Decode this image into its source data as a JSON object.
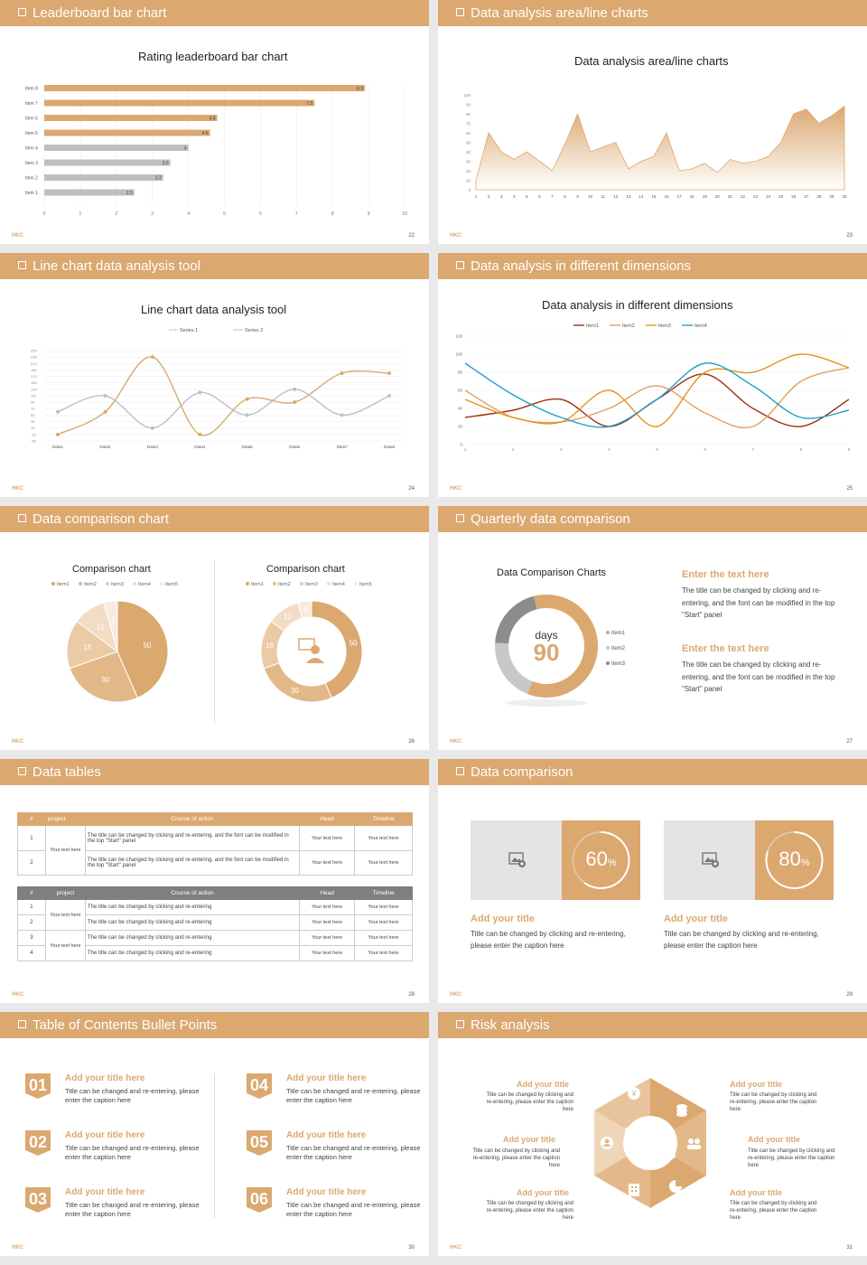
{
  "colors": {
    "accent": "#dba870",
    "gray": "#bfbfbf",
    "dark_gray": "#7f7f7f",
    "light": "#f2dcc4"
  },
  "logo": "HKC",
  "slides": [
    {
      "header": "Leaderboard bar chart",
      "page": "22",
      "title": "Rating leaderboard bar chart"
    },
    {
      "header": "Data analysis area/line charts",
      "page": "23",
      "title": "Data analysis area/line charts"
    },
    {
      "header": "Line chart data analysis tool",
      "page": "24",
      "title": "Line chart data analysis tool"
    },
    {
      "header": "Data analysis in different dimensions",
      "page": "25",
      "title": "Data analysis in different dimensions"
    },
    {
      "header": "Data comparison chart",
      "page": "26",
      "title": "Comparison chart",
      "title2": "Comparison chart"
    },
    {
      "header": "Quarterly data comparison",
      "page": "27",
      "title": "Data Comparison Charts"
    },
    {
      "header": "Data tables",
      "page": "28"
    },
    {
      "header": "Data comparison",
      "page": "29"
    },
    {
      "header": "Table of Contents Bullet Points",
      "page": "30"
    },
    {
      "header": "Risk analysis",
      "page": "31"
    }
  ],
  "chart_data": [
    {
      "type": "bar",
      "title": "Rating leaderboard bar chart",
      "categories": [
        "Item 8",
        "Item 7",
        "Item 6",
        "Item 5",
        "Item 4",
        "Item 3",
        "Item 2",
        "Item 1"
      ],
      "values": [
        8.9,
        7.5,
        4.8,
        4.6,
        4,
        3.5,
        3.3,
        2.5
      ],
      "xlim": [
        0,
        10
      ],
      "xticks": [
        "0",
        "1",
        "2",
        "3",
        "4",
        "5",
        "6",
        "7",
        "8",
        "9",
        "10"
      ]
    },
    {
      "type": "area",
      "title": "Data analysis area/line charts",
      "x": [
        1,
        2,
        3,
        4,
        5,
        6,
        7,
        8,
        9,
        10,
        11,
        12,
        13,
        14,
        15,
        16,
        17,
        18,
        19,
        20,
        21,
        22,
        23,
        24,
        25,
        26,
        27,
        28,
        29,
        30
      ],
      "values": [
        10,
        60,
        40,
        32,
        40,
        30,
        20,
        48,
        80,
        40,
        45,
        50,
        22,
        30,
        35,
        60,
        20,
        22,
        28,
        18,
        32,
        28,
        30,
        35,
        50,
        80,
        85,
        70,
        78,
        88
      ],
      "ylim": [
        0,
        100
      ],
      "yticks": [
        "0",
        "10",
        "20",
        "30",
        "40",
        "50",
        "60",
        "70",
        "80",
        "90",
        "100"
      ]
    },
    {
      "type": "line",
      "title": "Line chart data analysis tool",
      "categories": [
        "Data1",
        "Data2",
        "Data3",
        "Data4",
        "Data5",
        "Data6",
        "Data7",
        "Data8"
      ],
      "series": [
        {
          "name": "Series 1",
          "values": [
            60,
            110,
            10,
            120,
            50,
            130,
            50,
            110
          ]
        },
        {
          "name": "Series 2",
          "values": [
            -10,
            60,
            230,
            -10,
            100,
            90,
            180,
            180
          ]
        }
      ],
      "ylim": [
        -30,
        250
      ],
      "yticks": [
        "250",
        "230",
        "210",
        "190",
        "170",
        "150",
        "130",
        "110",
        "90",
        "70",
        "50",
        "30",
        "10",
        "-10",
        "-30"
      ]
    },
    {
      "type": "line",
      "title": "Data analysis in different dimensions",
      "categories": [
        "1",
        "2",
        "3",
        "4",
        "5",
        "6",
        "7",
        "8",
        "9"
      ],
      "series": [
        {
          "name": "Item1",
          "values": [
            30,
            38,
            50,
            20,
            50,
            78,
            40,
            20,
            50
          ],
          "color": "#a03010"
        },
        {
          "name": "Item2",
          "values": [
            60,
            30,
            25,
            40,
            65,
            35,
            20,
            70,
            85
          ],
          "color": "#e0a060"
        },
        {
          "name": "Item3",
          "values": [
            50,
            30,
            25,
            60,
            20,
            80,
            80,
            100,
            85
          ],
          "color": "#e0941a"
        },
        {
          "name": "Item4",
          "values": [
            90,
            55,
            30,
            20,
            50,
            90,
            65,
            30,
            38
          ],
          "color": "#20a0c8"
        }
      ],
      "ylim": [
        0,
        120
      ],
      "yticks": [
        "120",
        "100",
        "80",
        "60",
        "40",
        "20",
        "0"
      ]
    },
    {
      "type": "pie",
      "title": "Comparison chart",
      "categories": [
        "Item1",
        "Item2",
        "Item3",
        "Item4",
        "Item5"
      ],
      "values": [
        50,
        30,
        18,
        12,
        5
      ]
    },
    {
      "type": "pie",
      "title": "Comparison chart",
      "categories": [
        "Item1",
        "Item2",
        "Item3",
        "Item4",
        "Item5"
      ],
      "values": [
        50,
        30,
        18,
        12,
        5
      ]
    },
    {
      "type": "pie",
      "title": "Data Comparison Charts",
      "categories": [
        "Item1",
        "Item2",
        "Item3"
      ],
      "values": [
        60,
        20,
        20
      ]
    }
  ],
  "quarterly": {
    "center_label": "days",
    "center_value": "90",
    "legend": [
      "Item1",
      "Item2",
      "Item3"
    ],
    "blocks": [
      {
        "title": "Enter the text here",
        "text": "The title can be changed by clicking and re-entering, and the font can be modified in the top \"Start\" panel"
      },
      {
        "title": "Enter the text here",
        "text": "The title can be changed by clicking and re-entering, and the font can be modified in the top \"Start\" panel"
      }
    ]
  },
  "tables": {
    "t1_head": [
      "#",
      "project",
      "Course of action",
      "Head",
      "Timeline"
    ],
    "t1_rows": [
      {
        "n": "1",
        "action": "The title can be changed by clicking and re-entering, and the font can be modified in the top \"Start\" panel",
        "head": "Your text here",
        "time": "Your text here"
      },
      {
        "n": "2",
        "action": "The title can be changed by clicking and re-entering, and the font can be modified in the top \"Start\" panel",
        "head": "Your text here",
        "time": "Your text here"
      }
    ],
    "t1_project": "Your text here",
    "t2_head": [
      "#",
      "project",
      "Course of action",
      "Head",
      "Timeline"
    ],
    "t2_rows": [
      {
        "n": "1",
        "action": "The title can be changed by clicking and re-entering",
        "head": "Your text here",
        "time": "Your text here"
      },
      {
        "n": "2",
        "action": "The title can be changed by clicking and re-entering",
        "head": "Your text here",
        "time": "Your text here"
      },
      {
        "n": "3",
        "action": "The title can be changed by clicking and re-entering",
        "head": "Your text here",
        "time": "Your text here"
      },
      {
        "n": "4",
        "action": "The title can be changed by clicking and re-entering",
        "head": "Your text here",
        "time": "Your text here"
      }
    ],
    "t2_project_a": "Your text here",
    "t2_project_b": "Your text here"
  },
  "comparison": [
    {
      "percent": 0.6,
      "value": "60",
      "unit": "%",
      "title": "Add your title",
      "text": "Title can be changed by clicking and re-entering, please enter the caption here"
    },
    {
      "percent": 0.8,
      "value": "80",
      "unit": "%",
      "title": "Add your title",
      "text": "Title can be changed by clicking and re-entering, please enter the caption here"
    }
  ],
  "toc": [
    {
      "num": "01",
      "title": "Add your title here",
      "text": "Title can be changed and re-entering, please enter the caption here"
    },
    {
      "num": "02",
      "title": "Add your title here",
      "text": "Title can be changed and re-entering, please enter the caption here"
    },
    {
      "num": "03",
      "title": "Add your title here",
      "text": "Title can be changed and re-entering, please enter the caption here"
    },
    {
      "num": "04",
      "title": "Add your title here",
      "text": "Title can be changed and re-entering, please enter the caption here"
    },
    {
      "num": "05",
      "title": "Add your title here",
      "text": "Title can be changed and re-entering, please enter the caption here"
    },
    {
      "num": "06",
      "title": "Add your title here",
      "text": "Title can be changed and re-entering, please enter the caption here"
    }
  ],
  "risk": [
    {
      "title": "Add your title",
      "text": "Title can be changed by clicking and re-entering, please enter the caption here"
    },
    {
      "title": "Add your title",
      "text": "Title can be changed by clicking and re-entering, please enter the caption here"
    },
    {
      "title": "Add your title",
      "text": "Title can be changed by clicking and re-entering, please enter the caption here"
    },
    {
      "title": "Add your title",
      "text": "Title can be changed by clicking and re-entering, please enter the caption here"
    },
    {
      "title": "Add your title",
      "text": "Title can be changed by clicking and re-entering, please enter the caption here"
    },
    {
      "title": "Add your title",
      "text": "Title can be changed by clicking and re-entering, please enter the caption here"
    }
  ]
}
